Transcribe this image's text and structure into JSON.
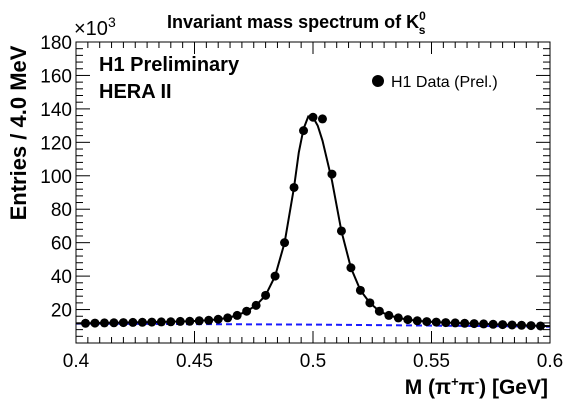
{
  "chart_data": {
    "type": "scatter",
    "title": "Invariant mass spectrum of K",
    "title_sup": "0",
    "title_sub": "s",
    "annotations": [
      "H1 Preliminary",
      "HERA II"
    ],
    "xlabel": "M (π",
    "xlabel_sup1": "+",
    "xlabel_mid": "π",
    "xlabel_sup2": "-",
    "xlabel_end": ") [GeV]",
    "ylabel": "Entries / 4.0 MeV",
    "y_multiplier": "×10",
    "y_multiplier_exp": "3",
    "xlim": [
      0.4,
      0.6
    ],
    "ylim": [
      0,
      180
    ],
    "x_ticks": [
      {
        "value": 0.4,
        "label": "0.4"
      },
      {
        "value": 0.45,
        "label": "0.45"
      },
      {
        "value": 0.5,
        "label": "0.5"
      },
      {
        "value": 0.55,
        "label": "0.55"
      },
      {
        "value": 0.6,
        "label": "0.6"
      }
    ],
    "y_ticks": [
      {
        "value": 20,
        "label": "20"
      },
      {
        "value": 40,
        "label": "40"
      },
      {
        "value": 60,
        "label": "60"
      },
      {
        "value": 80,
        "label": "80"
      },
      {
        "value": 100,
        "label": "100"
      },
      {
        "value": 120,
        "label": "120"
      },
      {
        "value": 140,
        "label": "140"
      },
      {
        "value": 160,
        "label": "160"
      },
      {
        "value": 180,
        "label": "180"
      }
    ],
    "legend": {
      "position": "top-right",
      "label": "H1 Data (Prel.)"
    },
    "series": [
      {
        "name": "H1 Data (Prel.)",
        "color": "#000000",
        "marker": "circle",
        "x": [
          0.404,
          0.408,
          0.412,
          0.416,
          0.42,
          0.424,
          0.428,
          0.432,
          0.436,
          0.44,
          0.444,
          0.448,
          0.452,
          0.456,
          0.46,
          0.464,
          0.468,
          0.472,
          0.476,
          0.48,
          0.484,
          0.488,
          0.492,
          0.496,
          0.5,
          0.504,
          0.508,
          0.512,
          0.516,
          0.52,
          0.524,
          0.528,
          0.532,
          0.536,
          0.54,
          0.544,
          0.548,
          0.552,
          0.556,
          0.56,
          0.564,
          0.568,
          0.572,
          0.576,
          0.58,
          0.584,
          0.588,
          0.592,
          0.596
        ],
        "y": [
          11.8,
          11.9,
          12.0,
          12.1,
          12.2,
          12.3,
          12.4,
          12.5,
          12.6,
          12.7,
          12.9,
          13.0,
          13.3,
          13.6,
          14.2,
          15.0,
          16.5,
          19.0,
          22.5,
          28.5,
          40.0,
          60.0,
          93.0,
          127.0,
          135.0,
          134.0,
          101.0,
          67.0,
          45.0,
          31.5,
          24.0,
          19.0,
          16.5,
          15.0,
          14.0,
          13.3,
          12.8,
          12.5,
          12.2,
          12.0,
          11.8,
          11.6,
          11.4,
          11.2,
          11.0,
          10.8,
          10.6,
          10.4,
          10.2
        ]
      }
    ],
    "fit_curve": {
      "style": "solid",
      "color": "#000000",
      "x": [
        0.4,
        0.404,
        0.408,
        0.412,
        0.416,
        0.42,
        0.424,
        0.428,
        0.432,
        0.436,
        0.44,
        0.444,
        0.448,
        0.452,
        0.456,
        0.46,
        0.464,
        0.468,
        0.472,
        0.476,
        0.48,
        0.484,
        0.488,
        0.492,
        0.494,
        0.496,
        0.498,
        0.5,
        0.502,
        0.504,
        0.508,
        0.512,
        0.516,
        0.52,
        0.524,
        0.528,
        0.532,
        0.536,
        0.54,
        0.544,
        0.548,
        0.552,
        0.556,
        0.56,
        0.564,
        0.568,
        0.572,
        0.576,
        0.58,
        0.584,
        0.588,
        0.592,
        0.596,
        0.6
      ],
      "y": [
        11.7,
        11.8,
        11.9,
        12.0,
        12.1,
        12.2,
        12.3,
        12.4,
        12.5,
        12.6,
        12.7,
        12.9,
        13.0,
        13.3,
        13.6,
        14.2,
        15.0,
        16.5,
        19.0,
        22.5,
        28.5,
        40.0,
        60.0,
        93.0,
        114.0,
        128.0,
        135.5,
        135.0,
        130.0,
        121.0,
        97.0,
        67.0,
        45.0,
        31.5,
        24.0,
        19.0,
        16.5,
        15.0,
        14.0,
        13.3,
        12.8,
        12.5,
        12.2,
        12.0,
        11.8,
        11.6,
        11.4,
        11.2,
        11.0,
        10.8,
        10.6,
        10.4,
        10.2,
        10.1
      ]
    },
    "background_curve": {
      "style": "dashed",
      "color": "#1a1aff",
      "x": [
        0.4,
        0.5,
        0.6
      ],
      "y": [
        11.6,
        11.0,
        9.8
      ]
    }
  }
}
